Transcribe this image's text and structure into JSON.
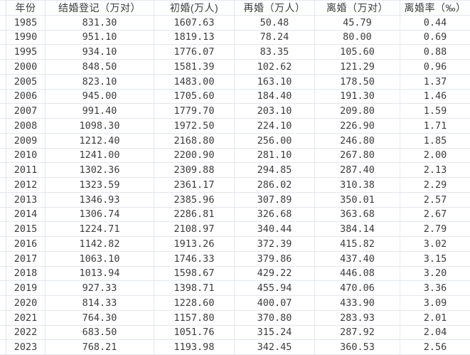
{
  "table": {
    "title": "marriage-divorce-statistics",
    "columns": [
      {
        "key": "year",
        "label": "年份"
      },
      {
        "key": "marriage_registrations",
        "label": "结婚登记（万对）"
      },
      {
        "key": "first_marriages",
        "label": "初婚(万人)"
      },
      {
        "key": "remarriages",
        "label": "再婚（万人）"
      },
      {
        "key": "divorces",
        "label": "离婚（万对）"
      },
      {
        "key": "divorce_rate",
        "label": "离婚率（‰）"
      }
    ],
    "rows": [
      [
        "1985",
        "831.30",
        "1607.63",
        "50.48",
        "45.79",
        "0.44"
      ],
      [
        "1990",
        "951.10",
        "1819.13",
        "78.24",
        "80.00",
        "0.69"
      ],
      [
        "1995",
        "934.10",
        "1776.07",
        "83.35",
        "105.60",
        "0.88"
      ],
      [
        "2000",
        "848.50",
        "1581.39",
        "102.62",
        "121.29",
        "0.96"
      ],
      [
        "2005",
        "823.10",
        "1483.00",
        "163.10",
        "178.50",
        "1.37"
      ],
      [
        "2006",
        "945.00",
        "1705.60",
        "184.40",
        "191.30",
        "1.46"
      ],
      [
        "2007",
        "991.40",
        "1779.70",
        "203.10",
        "209.80",
        "1.59"
      ],
      [
        "2008",
        "1098.30",
        "1972.50",
        "224.10",
        "226.90",
        "1.71"
      ],
      [
        "2009",
        "1212.40",
        "2168.80",
        "256.00",
        "246.80",
        "1.85"
      ],
      [
        "2010",
        "1241.00",
        "2200.90",
        "281.10",
        "267.80",
        "2.00"
      ],
      [
        "2011",
        "1302.36",
        "2309.88",
        "294.85",
        "287.40",
        "2.13"
      ],
      [
        "2012",
        "1323.59",
        "2361.17",
        "286.02",
        "310.38",
        "2.29"
      ],
      [
        "2013",
        "1346.93",
        "2385.96",
        "307.89",
        "350.01",
        "2.57"
      ],
      [
        "2014",
        "1306.74",
        "2286.81",
        "326.68",
        "363.68",
        "2.67"
      ],
      [
        "2015",
        "1224.71",
        "2108.97",
        "340.44",
        "384.14",
        "2.79"
      ],
      [
        "2016",
        "1142.82",
        "1913.26",
        "372.39",
        "415.82",
        "3.02"
      ],
      [
        "2017",
        "1063.10",
        "1746.33",
        "379.86",
        "437.40",
        "3.15"
      ],
      [
        "2018",
        "1013.94",
        "1598.67",
        "429.22",
        "446.08",
        "3.20"
      ],
      [
        "2019",
        "927.33",
        "1398.71",
        "455.94",
        "470.06",
        "3.36"
      ],
      [
        "2020",
        "814.33",
        "1228.60",
        "400.07",
        "433.90",
        "3.09"
      ],
      [
        "2021",
        "764.30",
        "1157.80",
        "370.80",
        "283.93",
        "2.01"
      ],
      [
        "2022",
        "683.50",
        "1051.76",
        "315.24",
        "287.92",
        "2.04"
      ],
      [
        "2023",
        "768.21",
        "1193.98",
        "342.45",
        "360.53",
        "2.56"
      ]
    ]
  },
  "colors": {
    "gridline": "#e2e6ec",
    "text": "#3c3c3c",
    "background": "#ffffff"
  }
}
